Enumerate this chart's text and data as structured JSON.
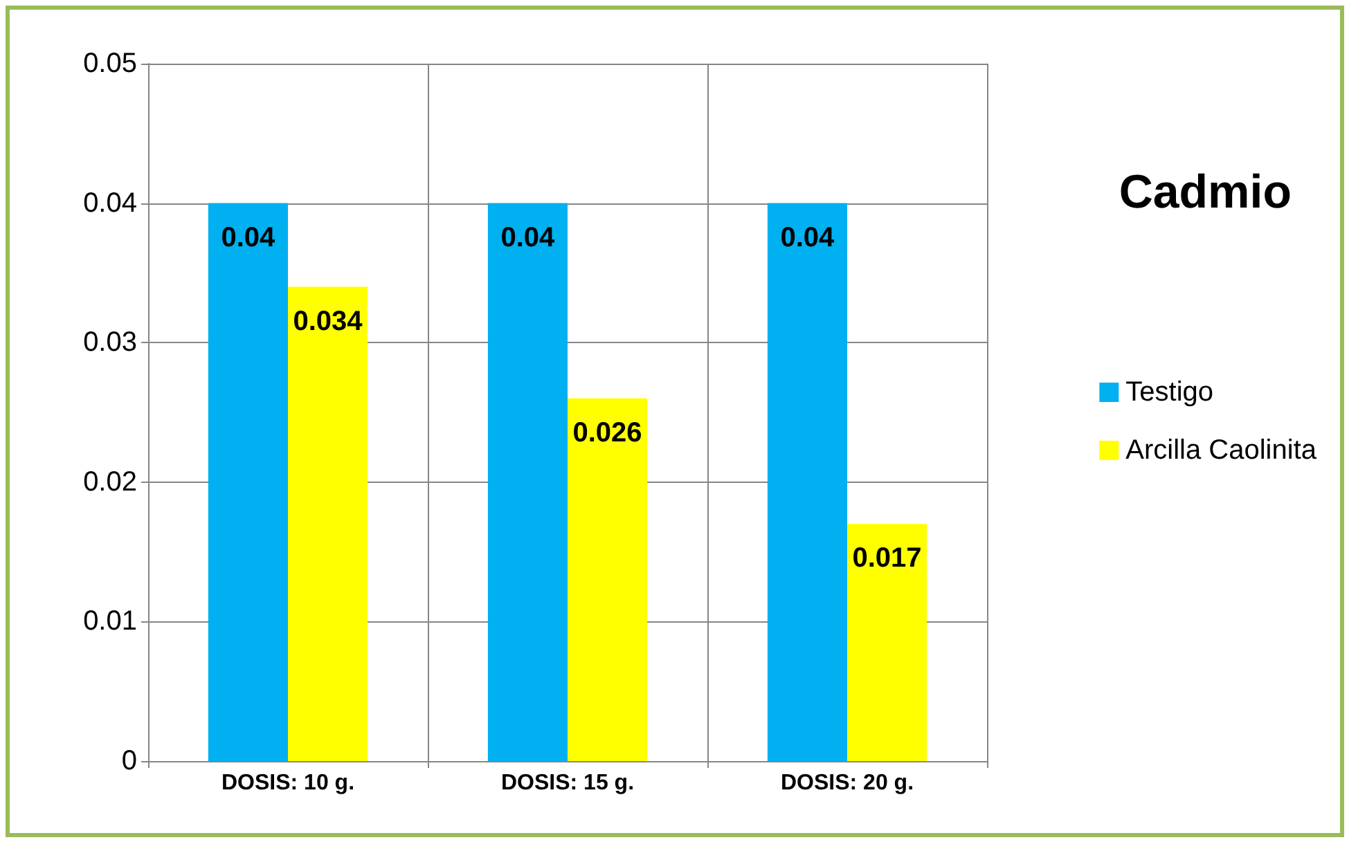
{
  "chart_data": {
    "type": "bar",
    "title": "Cadmio",
    "categories": [
      "DOSIS: 10 g.",
      "DOSIS: 15 g.",
      "DOSIS: 20 g."
    ],
    "series": [
      {
        "name": "Testigo",
        "color": "#00b0f0",
        "values": [
          0.04,
          0.04,
          0.04
        ]
      },
      {
        "name": "Arcilla Caolinita",
        "color": "#ffff00",
        "values": [
          0.034,
          0.026,
          0.017
        ]
      }
    ],
    "ylim": [
      0,
      0.05
    ],
    "yticks": [
      0,
      0.01,
      0.02,
      0.03,
      0.04,
      0.05
    ],
    "grid": true,
    "legend": "right",
    "data_labels": true
  }
}
